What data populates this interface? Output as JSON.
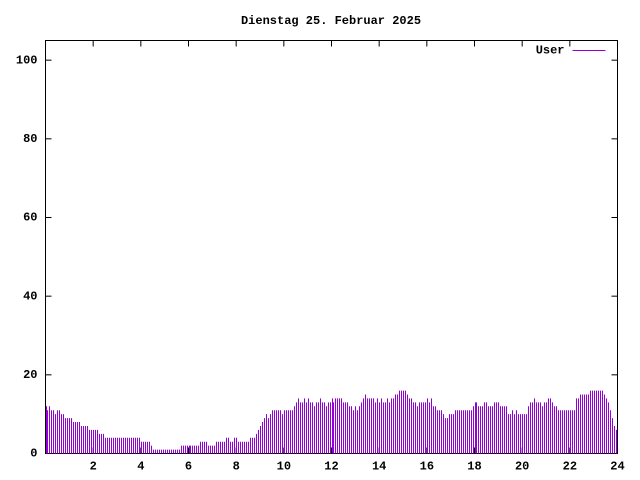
{
  "chart_data": {
    "type": "impulses",
    "title": "Dienstag 25. Februar 2025",
    "xlim": [
      0,
      24
    ],
    "xticks": [
      2,
      4,
      6,
      8,
      10,
      12,
      14,
      16,
      18,
      20,
      22,
      24
    ],
    "ylim": [
      0,
      105
    ],
    "yticks": [
      0,
      20,
      40,
      60,
      80,
      100
    ],
    "legend": "top-right",
    "series": [
      {
        "name": "User",
        "color": "#9400d3",
        "x": [
          0,
          0.083,
          0.167,
          0.25,
          0.333,
          0.417,
          0.5,
          0.583,
          0.667,
          0.75,
          0.833,
          0.917,
          1,
          1.083,
          1.167,
          1.25,
          1.333,
          1.417,
          1.5,
          1.583,
          1.667,
          1.75,
          1.833,
          1.917,
          2,
          2.083,
          2.167,
          2.25,
          2.333,
          2.417,
          2.5,
          2.583,
          2.667,
          2.75,
          2.833,
          2.917,
          3,
          3.083,
          3.167,
          3.25,
          3.333,
          3.417,
          3.5,
          3.583,
          3.667,
          3.75,
          3.833,
          3.917,
          4,
          4.083,
          4.167,
          4.25,
          4.333,
          4.417,
          4.5,
          4.583,
          4.667,
          4.75,
          4.833,
          4.917,
          5,
          5.083,
          5.167,
          5.25,
          5.333,
          5.417,
          5.5,
          5.583,
          5.667,
          5.75,
          5.833,
          5.917,
          6,
          6.083,
          6.167,
          6.25,
          6.333,
          6.417,
          6.5,
          6.583,
          6.667,
          6.75,
          6.833,
          6.917,
          7,
          7.083,
          7.167,
          7.25,
          7.333,
          7.417,
          7.5,
          7.583,
          7.667,
          7.75,
          7.833,
          7.917,
          8,
          8.083,
          8.167,
          8.25,
          8.333,
          8.417,
          8.5,
          8.583,
          8.667,
          8.75,
          8.833,
          8.917,
          9,
          9.083,
          9.167,
          9.25,
          9.333,
          9.417,
          9.5,
          9.583,
          9.667,
          9.75,
          9.833,
          9.917,
          10,
          10.083,
          10.167,
          10.25,
          10.333,
          10.417,
          10.5,
          10.583,
          10.667,
          10.75,
          10.833,
          10.917,
          11,
          11.083,
          11.167,
          11.25,
          11.333,
          11.417,
          11.5,
          11.583,
          11.667,
          11.75,
          11.833,
          11.917,
          12,
          12.083,
          12.167,
          12.25,
          12.333,
          12.417,
          12.5,
          12.583,
          12.667,
          12.75,
          12.833,
          12.917,
          13,
          13.083,
          13.167,
          13.25,
          13.333,
          13.417,
          13.5,
          13.583,
          13.667,
          13.75,
          13.833,
          13.917,
          14,
          14.083,
          14.167,
          14.25,
          14.333,
          14.417,
          14.5,
          14.583,
          14.667,
          14.75,
          14.833,
          14.917,
          15,
          15.083,
          15.167,
          15.25,
          15.333,
          15.417,
          15.5,
          15.583,
          15.667,
          15.75,
          15.833,
          15.917,
          16,
          16.083,
          16.167,
          16.25,
          16.333,
          16.417,
          16.5,
          16.583,
          16.667,
          16.75,
          16.833,
          16.917,
          17,
          17.083,
          17.167,
          17.25,
          17.333,
          17.417,
          17.5,
          17.583,
          17.667,
          17.75,
          17.833,
          17.917,
          18,
          18.083,
          18.167,
          18.25,
          18.333,
          18.417,
          18.5,
          18.583,
          18.667,
          18.75,
          18.833,
          18.917,
          19,
          19.083,
          19.167,
          19.25,
          19.333,
          19.417,
          19.5,
          19.583,
          19.667,
          19.75,
          19.833,
          19.917,
          20,
          20.083,
          20.167,
          20.25,
          20.333,
          20.417,
          20.5,
          20.583,
          20.667,
          20.75,
          20.833,
          20.917,
          21,
          21.083,
          21.167,
          21.25,
          21.333,
          21.417,
          21.5,
          21.583,
          21.667,
          21.75,
          21.833,
          21.917,
          22,
          22.083,
          22.167,
          22.25,
          22.333,
          22.417,
          22.5,
          22.583,
          22.667,
          22.75,
          22.833,
          22.917,
          23,
          23.083,
          23.167,
          23.25,
          23.333,
          23.417,
          23.5,
          23.583,
          23.667,
          23.75,
          23.833,
          23.917
        ],
        "values": [
          12,
          11,
          12,
          11,
          11,
          10,
          11,
          11,
          10,
          10,
          9,
          9,
          9,
          9,
          8,
          8,
          8,
          8,
          7,
          7,
          7,
          7,
          6,
          6,
          6,
          6,
          6,
          5,
          5,
          5,
          4,
          4,
          4,
          4,
          4,
          4,
          4,
          4,
          4,
          4,
          4,
          4,
          4,
          4,
          4,
          4,
          4,
          4,
          3,
          3,
          3,
          3,
          3,
          2,
          1,
          1,
          1,
          1,
          1,
          1,
          1,
          1,
          1,
          1,
          1,
          1,
          1,
          1,
          2,
          2,
          2,
          2,
          2,
          2,
          2,
          2,
          2,
          2,
          3,
          3,
          3,
          3,
          2,
          2,
          2,
          2,
          3,
          3,
          3,
          3,
          3,
          4,
          4,
          3,
          3,
          4,
          4,
          3,
          3,
          3,
          3,
          3,
          3,
          4,
          4,
          4,
          5,
          6,
          7,
          8,
          9,
          10,
          9,
          10,
          11,
          11,
          11,
          11,
          11,
          10,
          11,
          11,
          11,
          11,
          11,
          12,
          13,
          14,
          13,
          13,
          14,
          13,
          14,
          13,
          13,
          12,
          13,
          13,
          14,
          13,
          13,
          12,
          13,
          13,
          14,
          13,
          14,
          14,
          14,
          14,
          13,
          13,
          13,
          12,
          12,
          11,
          12,
          11,
          12,
          13,
          14,
          15,
          14,
          14,
          14,
          14,
          13,
          14,
          13,
          14,
          13,
          13,
          14,
          13,
          14,
          14,
          15,
          15,
          16,
          16,
          16,
          16,
          15,
          14,
          14,
          13,
          13,
          12,
          13,
          13,
          13,
          13,
          14,
          13,
          14,
          12,
          12,
          11,
          11,
          11,
          10,
          9,
          9,
          10,
          10,
          10,
          11,
          11,
          11,
          11,
          11,
          11,
          11,
          11,
          11,
          12,
          13,
          13,
          12,
          12,
          12,
          13,
          13,
          12,
          12,
          12,
          13,
          13,
          13,
          12,
          12,
          12,
          12,
          10,
          10,
          11,
          10,
          11,
          10,
          10,
          10,
          10,
          10,
          12,
          13,
          13,
          14,
          13,
          13,
          13,
          12,
          13,
          13,
          14,
          14,
          13,
          12,
          12,
          11,
          11,
          11,
          11,
          11,
          11,
          11,
          11,
          11,
          14,
          14,
          15,
          15,
          15,
          15,
          15,
          16,
          16,
          16,
          16,
          16,
          16,
          16,
          15,
          14,
          13,
          11,
          9,
          7,
          6
        ]
      }
    ]
  }
}
